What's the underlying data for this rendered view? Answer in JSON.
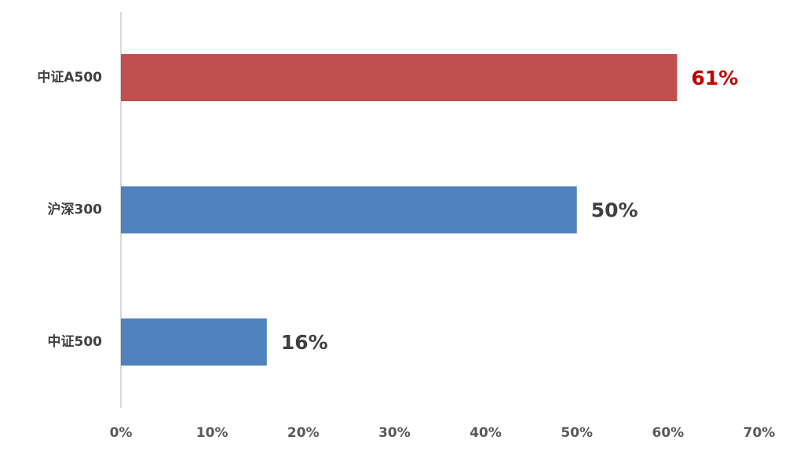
{
  "chart_data": {
    "type": "hbar",
    "categories": [
      "中证A500",
      "沪深300",
      "中证500"
    ],
    "values": [
      61,
      50,
      16
    ],
    "value_labels": [
      "61%",
      "50%",
      "16%"
    ],
    "colors": [
      "#c0504d",
      "#4f81bd",
      "#4f81bd"
    ],
    "value_label_colors": [
      "#c00000",
      "#404040",
      "#404040"
    ],
    "xlim": [
      0,
      70
    ],
    "xticks": [
      {
        "value": 0,
        "label": "0%"
      },
      {
        "value": 10,
        "label": "10%"
      },
      {
        "value": 20,
        "label": "20%"
      },
      {
        "value": 30,
        "label": "30%"
      },
      {
        "value": 40,
        "label": "40%"
      },
      {
        "value": 50,
        "label": "50%"
      },
      {
        "value": 60,
        "label": "60%"
      },
      {
        "value": 70,
        "label": "70%"
      }
    ],
    "grid": false
  }
}
